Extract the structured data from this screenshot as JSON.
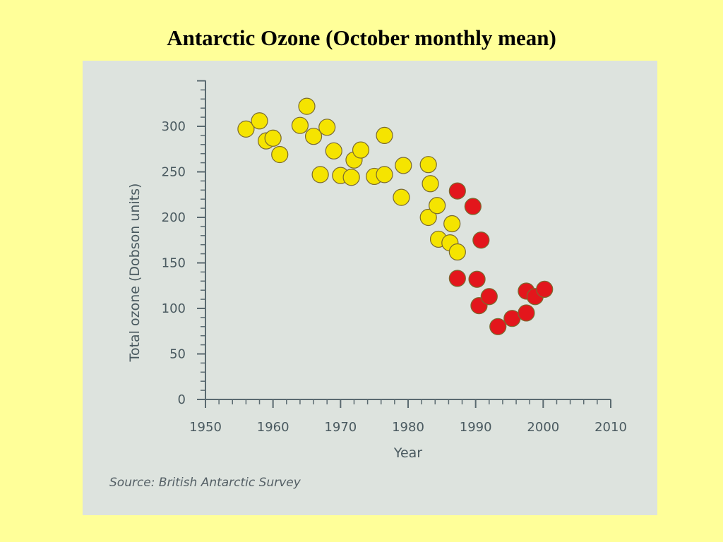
{
  "title": "Antarctic Ozone (October monthly mean)",
  "source": "Source: British Antarctic Survey",
  "colors": {
    "background": "#ffff99",
    "panel": "#dde3de",
    "axis": "#5a6a70",
    "early_points": "#f5e400",
    "late_points": "#e3161c"
  },
  "chart_data": {
    "type": "scatter",
    "xlabel": "Year",
    "ylabel": "Total ozone (Dobson units)",
    "xlim": [
      1950,
      2010
    ],
    "ylim": [
      0,
      350
    ],
    "xticks": [
      1950,
      1960,
      1970,
      1980,
      1990,
      2000,
      2010
    ],
    "yticks": [
      0,
      50,
      100,
      150,
      200,
      250,
      300
    ],
    "grid": false,
    "series": [
      {
        "color": "#f5e400",
        "points": [
          [
            1956,
            297
          ],
          [
            1958,
            306
          ],
          [
            1959,
            284
          ],
          [
            1960,
            287
          ],
          [
            1961,
            269
          ],
          [
            1964,
            301
          ],
          [
            1965,
            322
          ],
          [
            1966,
            289
          ],
          [
            1967,
            247
          ],
          [
            1968,
            299
          ],
          [
            1969,
            273
          ],
          [
            1970,
            246
          ],
          [
            1971.6,
            244
          ],
          [
            1972,
            263
          ],
          [
            1973,
            274
          ],
          [
            1975,
            245
          ],
          [
            1976.5,
            290
          ],
          [
            1976.5,
            247
          ],
          [
            1979,
            222
          ],
          [
            1979.3,
            257
          ],
          [
            1983,
            258
          ],
          [
            1983.3,
            237
          ],
          [
            1983,
            200
          ],
          [
            1984.3,
            213
          ],
          [
            1984.5,
            176
          ],
          [
            1986.2,
            172
          ],
          [
            1986.5,
            193
          ],
          [
            1987.3,
            162
          ]
        ]
      },
      {
        "color": "#e3161c",
        "points": [
          [
            1987.3,
            229
          ],
          [
            1987.3,
            133
          ],
          [
            1989.6,
            212
          ],
          [
            1990.2,
            132
          ],
          [
            1990.5,
            103
          ],
          [
            1990.8,
            175
          ],
          [
            1992,
            113
          ],
          [
            1993.3,
            80
          ],
          [
            1995.4,
            89
          ],
          [
            1997.5,
            95
          ],
          [
            1997.5,
            119
          ],
          [
            1998.8,
            113
          ],
          [
            2000.2,
            121
          ]
        ]
      }
    ]
  }
}
